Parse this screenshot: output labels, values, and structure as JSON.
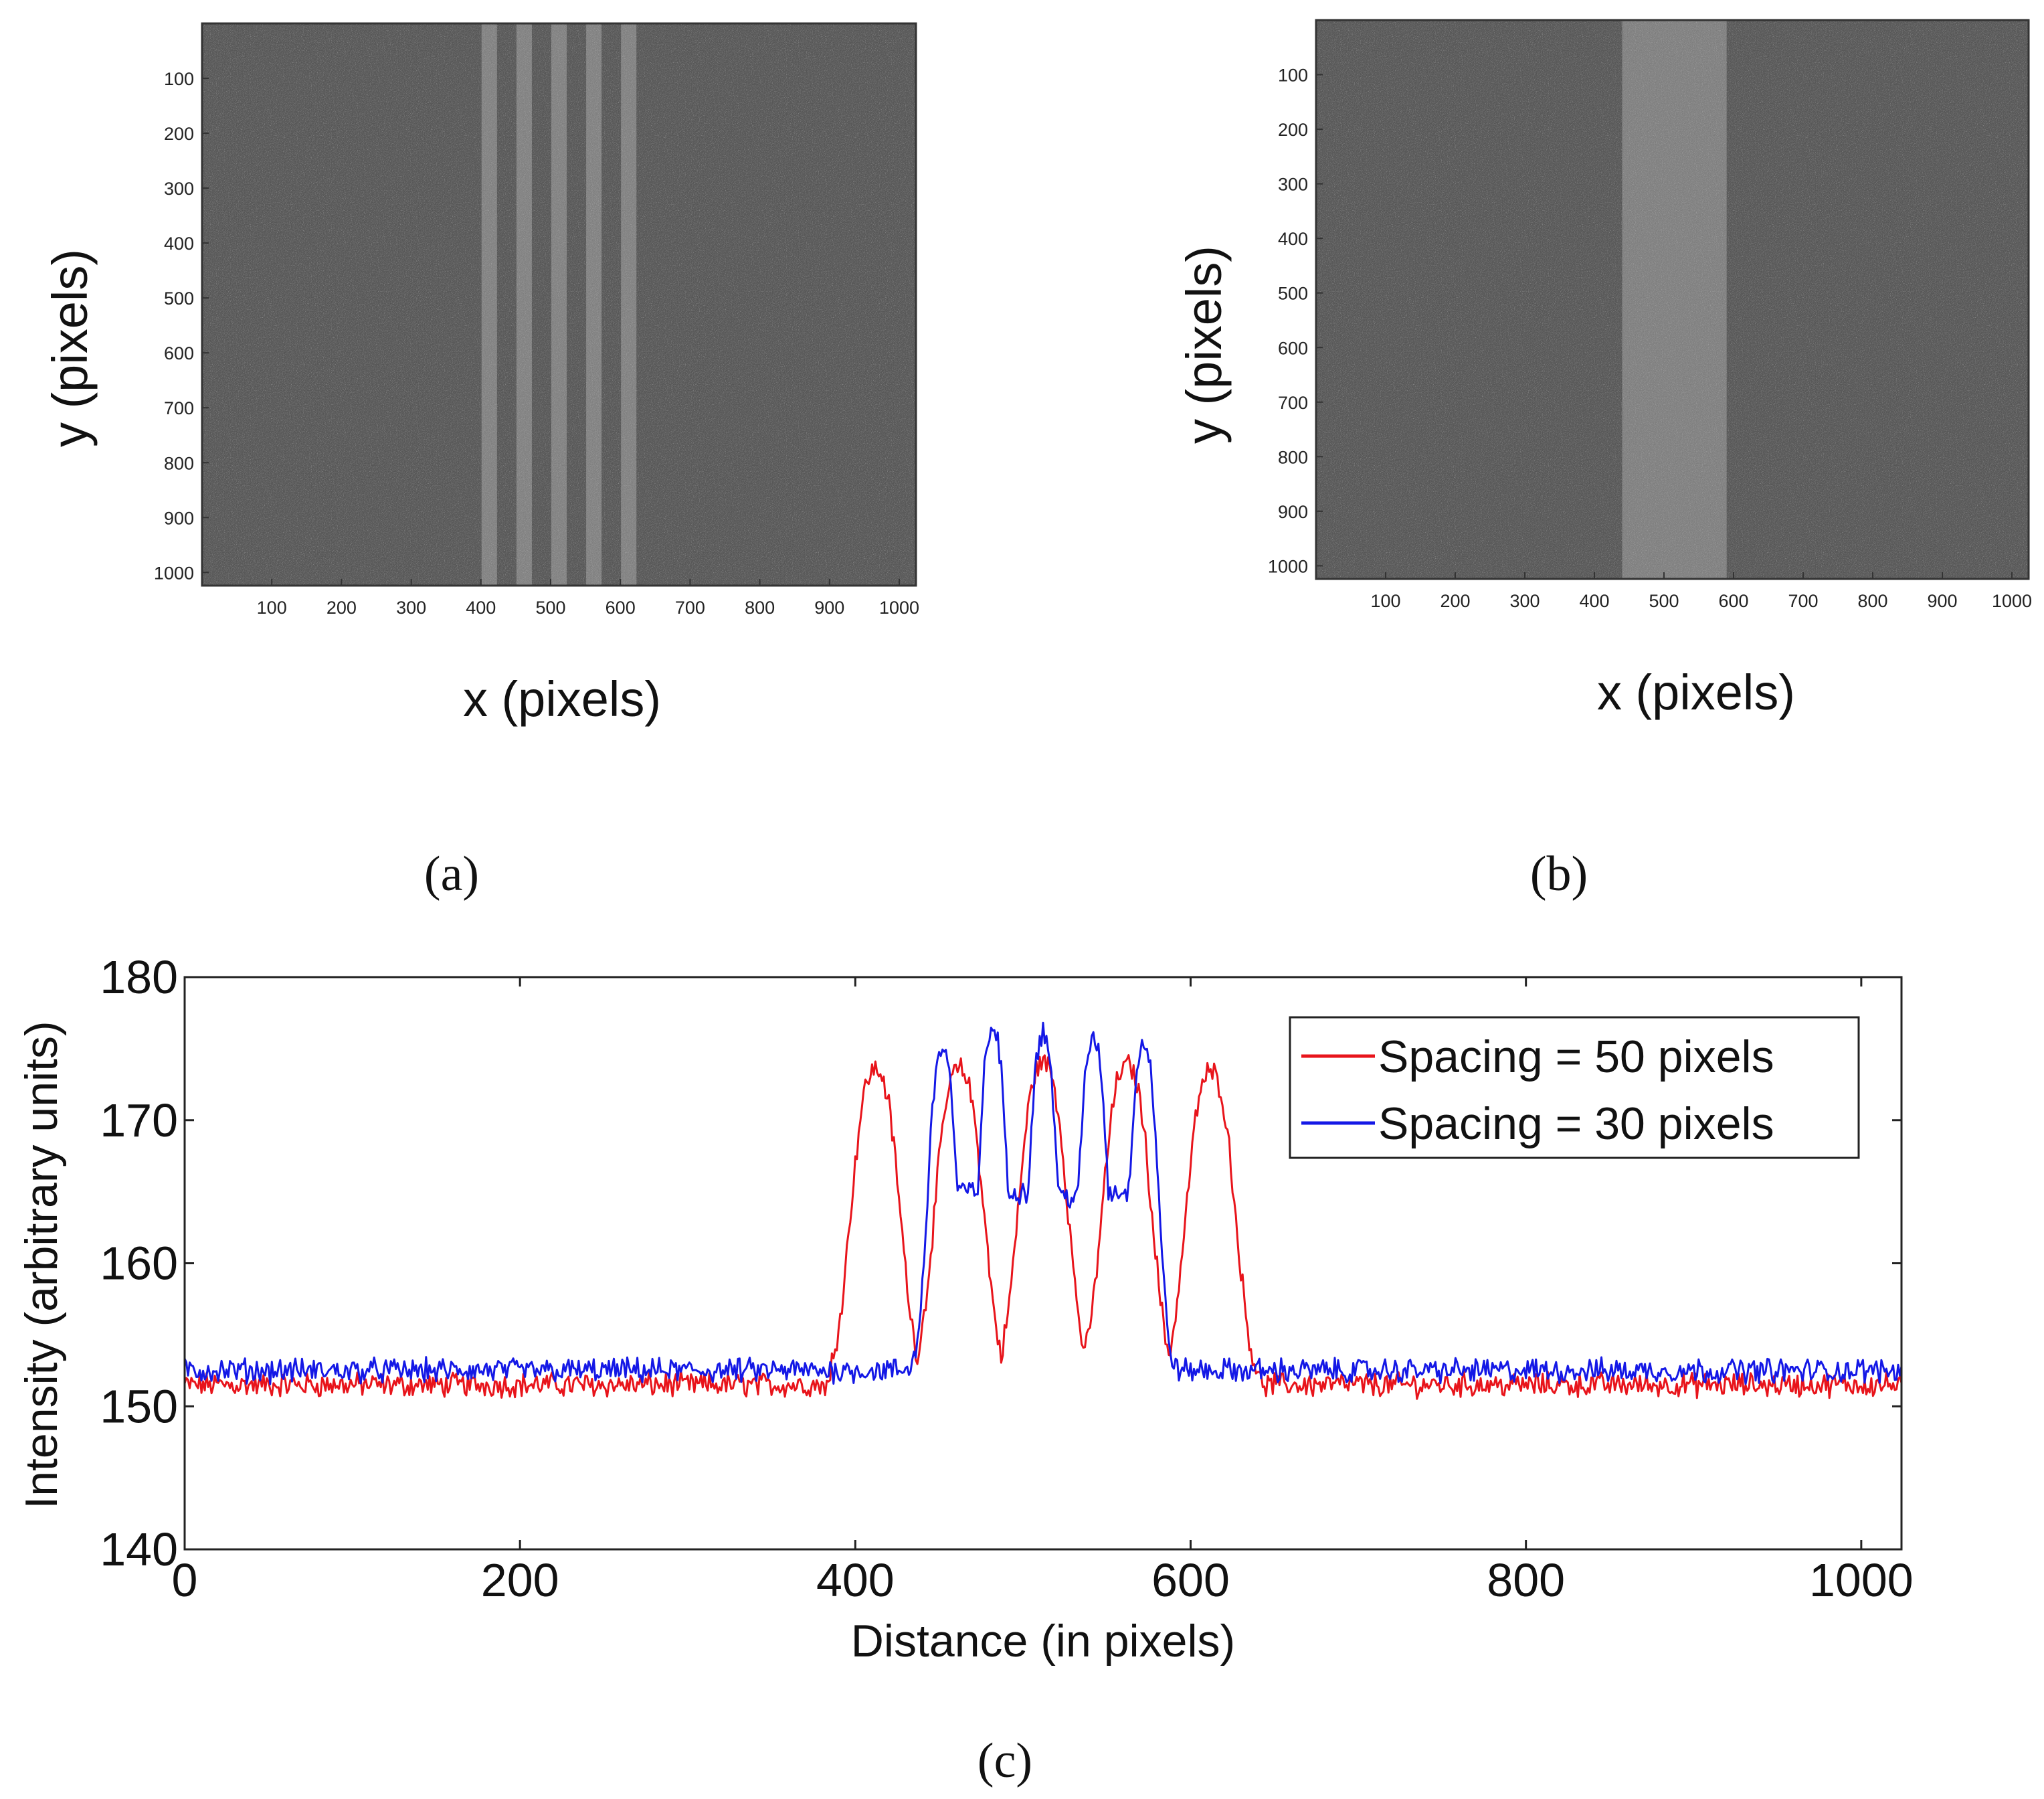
{
  "panel_a": {
    "xlabel": "x (pixels)",
    "ylabel": "y (pixels)",
    "caption": "(a)",
    "xticks": [
      "100",
      "200",
      "300",
      "400",
      "500",
      "600",
      "700",
      "800",
      "900",
      "1000"
    ],
    "yticks": [
      "100",
      "200",
      "300",
      "400",
      "500",
      "600",
      "700",
      "800",
      "900",
      "1000"
    ]
  },
  "panel_b": {
    "xlabel": "x (pixels)",
    "ylabel": "y (pixels)",
    "caption": "(b)",
    "xticks": [
      "100",
      "200",
      "300",
      "400",
      "500",
      "600",
      "700",
      "800",
      "900",
      "1000"
    ],
    "yticks": [
      "100",
      "200",
      "300",
      "400",
      "500",
      "600",
      "700",
      "800",
      "900",
      "1000"
    ]
  },
  "panel_c": {
    "caption": "(c)"
  },
  "chart_data": [
    {
      "type": "heatmap",
      "name": "panel-a",
      "xlabel": "x (pixels)",
      "ylabel": "y (pixels)",
      "xlim": [
        0,
        1024
      ],
      "ylim": [
        0,
        1024
      ],
      "bright_stripe_centers": [
        412,
        462,
        512,
        562,
        612
      ],
      "stripe_width": 22,
      "background_gray": "#5a5a5a",
      "stripe_gray": "#8c8c8c"
    },
    {
      "type": "heatmap",
      "name": "panel-b",
      "xlabel": "x (pixels)",
      "ylabel": "y (pixels)",
      "xlim": [
        0,
        1024
      ],
      "ylim": [
        0,
        1024
      ],
      "bright_band": [
        440,
        590
      ],
      "background_gray": "#5a5a5a",
      "stripe_gray": "#8a8a8a"
    },
    {
      "type": "line",
      "name": "panel-c",
      "xlabel": "Distance (in pixels)",
      "ylabel": "Intensity (arbitrary units)",
      "xlim": [
        0,
        1024
      ],
      "ylim": [
        140,
        180
      ],
      "xticks": [
        0,
        200,
        400,
        600,
        800,
        1000
      ],
      "yticks": [
        140,
        150,
        160,
        170,
        180
      ],
      "legend_position": "top-right",
      "series": [
        {
          "name": "Spacing = 50 pixels",
          "color": "#e8141b",
          "baseline": 151.5,
          "peaks": [
            {
              "center": 412,
              "height": 173.5
            },
            {
              "center": 462,
              "height": 173.5
            },
            {
              "center": 512,
              "height": 174.0
            },
            {
              "center": 562,
              "height": 173.8
            },
            {
              "center": 612,
              "height": 173.3
            }
          ],
          "valleys": [
            {
              "x": 437,
              "y": 153.5
            },
            {
              "x": 487,
              "y": 153.8
            },
            {
              "x": 537,
              "y": 152.5
            },
            {
              "x": 587,
              "y": 153.5
            }
          ],
          "edges": [
            392,
            635
          ]
        },
        {
          "name": "Spacing = 30 pixels",
          "color": "#1418e6",
          "baseline": 152.5,
          "peaks": [
            {
              "center": 452,
              "height": 175.0
            },
            {
              "center": 482,
              "height": 176.3
            },
            {
              "center": 512,
              "height": 176.0
            },
            {
              "center": 542,
              "height": 175.6
            },
            {
              "center": 572,
              "height": 175.3
            }
          ],
          "valleys": [
            {
              "x": 467,
              "y": 166.5
            },
            {
              "x": 497,
              "y": 166.5
            },
            {
              "x": 527,
              "y": 166.2
            },
            {
              "x": 557,
              "y": 166.5
            }
          ],
          "edges": [
            430,
            595
          ]
        }
      ]
    }
  ]
}
